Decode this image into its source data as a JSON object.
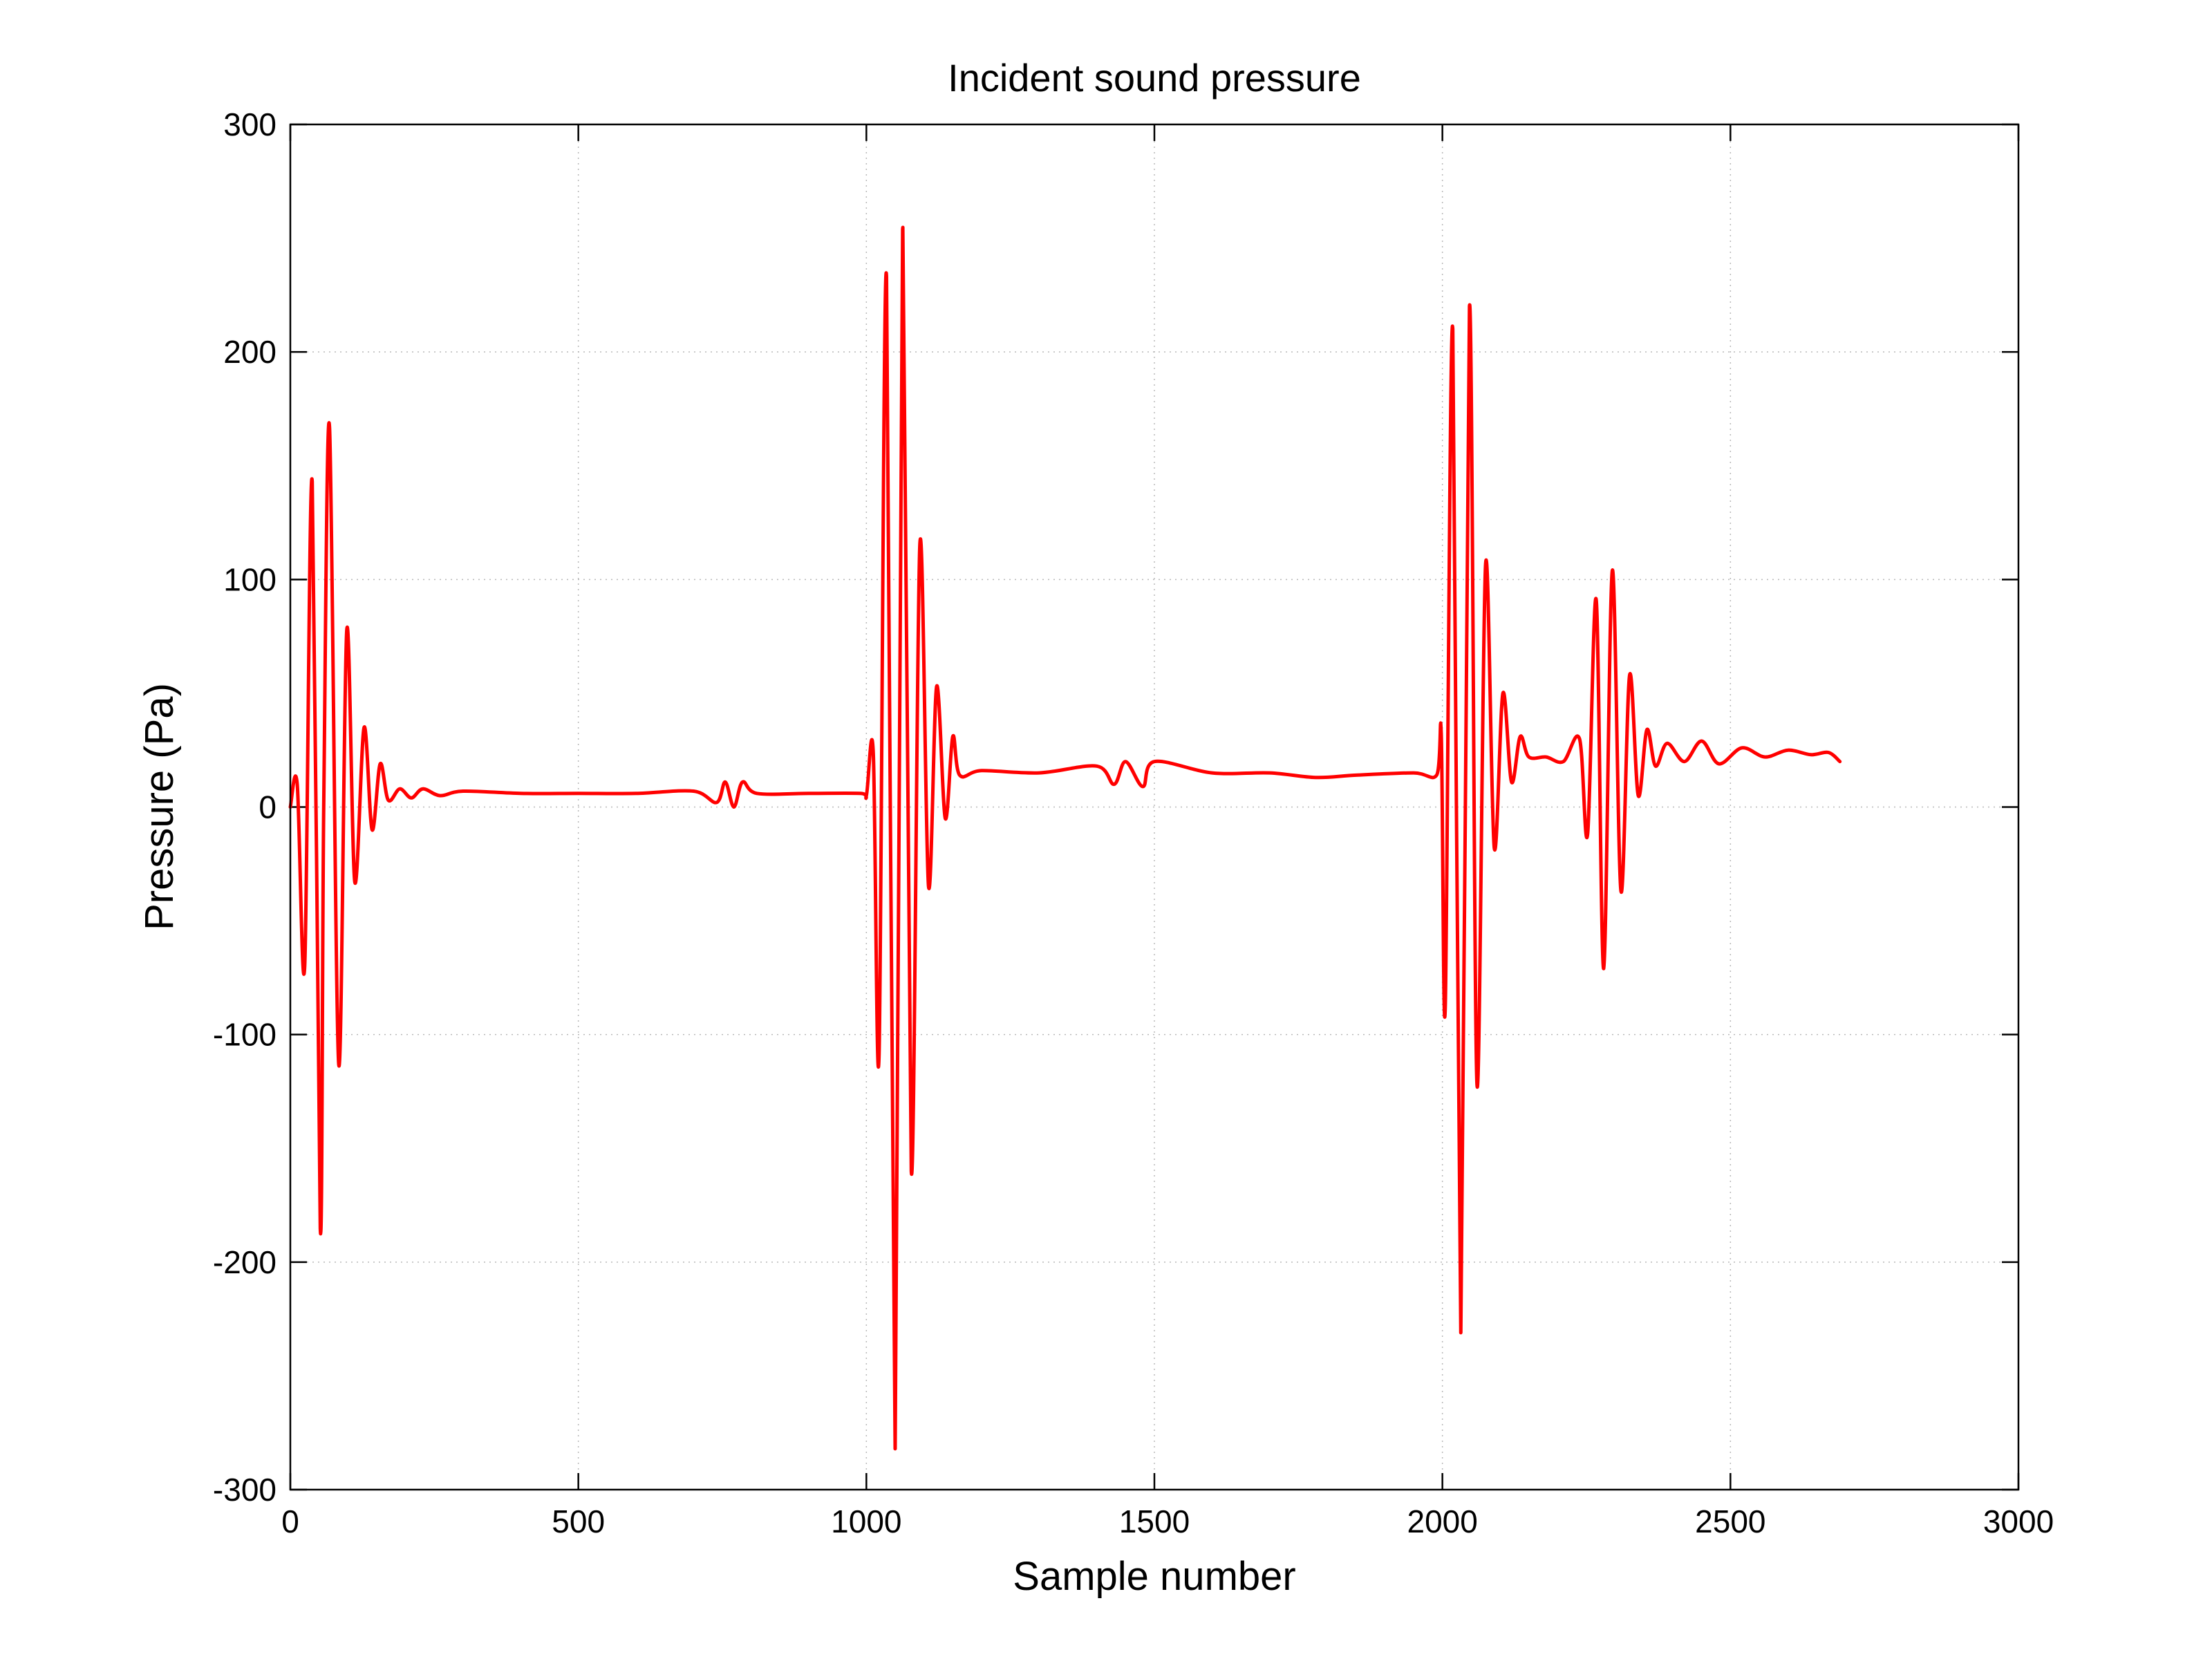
{
  "chart_data": {
    "type": "line",
    "title": "Incident sound pressure",
    "xlabel": "Sample number",
    "ylabel": "Pressure (Pa)",
    "xlim": [
      0,
      3000
    ],
    "ylim": [
      -300,
      300
    ],
    "xticks": [
      0,
      500,
      1000,
      1500,
      2000,
      2500,
      3000
    ],
    "yticks": [
      300,
      200,
      100,
      0,
      -100,
      -200,
      -300
    ],
    "grid": true,
    "line_color": "#ff0000",
    "series": [
      {
        "x": [
          0,
          12,
          25,
          38,
          52,
          58,
          68,
          84,
          98,
          112,
          128,
          142,
          156,
          170,
          190,
          210,
          230,
          260,
          300,
          400,
          500,
          600,
          700,
          740,
          755,
          770,
          785,
          810,
          900,
          990,
          1000,
          1012,
          1022,
          1035,
          1050,
          1063,
          1078,
          1093,
          1108,
          1122,
          1137,
          1150,
          1162,
          1200,
          1300,
          1400,
          1430,
          1450,
          1480,
          1500,
          1600,
          1700,
          1780,
          1850,
          1950,
          1990,
          1998,
          2005,
          2018,
          2032,
          2047,
          2060,
          2075,
          2090,
          2105,
          2120,
          2135,
          2150,
          2180,
          2210,
          2238,
          2252,
          2267,
          2280,
          2295,
          2310,
          2325,
          2340,
          2355,
          2370,
          2390,
          2420,
          2450,
          2480,
          2520,
          2560,
          2600,
          2640,
          2670,
          2690
        ],
        "y": [
          0,
          10,
          -70,
          143,
          -185,
          0,
          167,
          -113,
          78,
          -33,
          35,
          -10,
          19,
          3,
          8,
          4,
          8,
          5,
          7,
          6,
          6,
          6,
          7,
          2,
          11,
          0,
          11,
          6,
          6,
          6,
          5,
          24,
          -109,
          233,
          -282,
          254,
          -160,
          116,
          -35,
          53,
          -5,
          31,
          14,
          16,
          15,
          18,
          10,
          20,
          9,
          20,
          15,
          15,
          13,
          14,
          15,
          14,
          32,
          -88,
          210,
          -231,
          220,
          -122,
          107,
          -18,
          50,
          11,
          31,
          22,
          22,
          20,
          30,
          -12,
          91,
          -71,
          104,
          -37,
          58,
          5,
          34,
          18,
          28,
          20,
          29,
          19,
          26,
          22,
          25,
          23,
          24,
          20
        ]
      }
    ]
  }
}
